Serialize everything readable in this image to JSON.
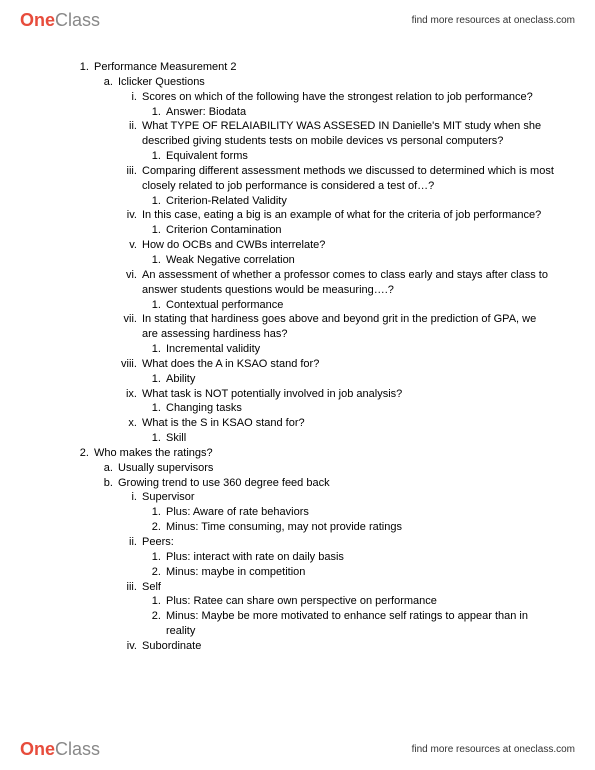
{
  "brand": {
    "part1": "One",
    "part2": "Class"
  },
  "tagline": "find more resources at oneclass.com",
  "outline": {
    "n1": "Performance Measurement 2",
    "a1": "Iclicker Questions",
    "i1": "Scores on which of the following have the strongest relation to job performance?",
    "i1a1": "Answer:   Biodata",
    "i2": "What TYPE OF RELAIABILITY WAS ASSESED IN Danielle's MIT study when she described giving students tests on mobile devices vs personal computers?",
    "i2a1": "Equivalent forms",
    "i3": "Comparing different assessment methods we discussed to determined which is most closely related to job performance is considered a test of…?",
    "i3a1": "Criterion-Related Validity",
    "i4": "In this case, eating a big is an example of what for the criteria of job performance?",
    "i4a1": "Criterion Contamination",
    "i5": "How do OCBs and CWBs interrelate?",
    "i5a1": "Weak Negative correlation",
    "i6": "An assessment of whether a professor comes to class early and stays after class to answer students questions would be measuring….?",
    "i6a1": "Contextual performance",
    "i7": "In stating that hardiness goes above and beyond grit in the prediction of GPA, we are assessing hardiness has?",
    "i7a1": "Incremental validity",
    "i8": "What does the A in KSAO stand for?",
    "i8a1": "Ability",
    "i9": "What task is NOT potentially involved in job analysis?",
    "i9a1": "Changing tasks",
    "i10": "What is the S in KSAO stand for?",
    "i10a1": "Skill",
    "n2": "Who makes the ratings?",
    "b2a": "Usually supervisors",
    "b2b": "Growing trend to use 360 degree feed back",
    "r2b1": "Supervisor",
    "r2b1p": "Plus: Aware of rate behaviors",
    "r2b1m": "Minus: Time consuming, may not provide ratings",
    "r2b2": "Peers:",
    "r2b2p": "Plus: interact with rate on daily basis",
    "r2b2m": "Minus: maybe in competition",
    "r2b3": "Self",
    "r2b3p": "Plus: Ratee can share own perspective on performance",
    "r2b3m": "Minus: Maybe be more motivated to enhance self ratings to appear than in reality",
    "r2b4": "Subordinate"
  }
}
